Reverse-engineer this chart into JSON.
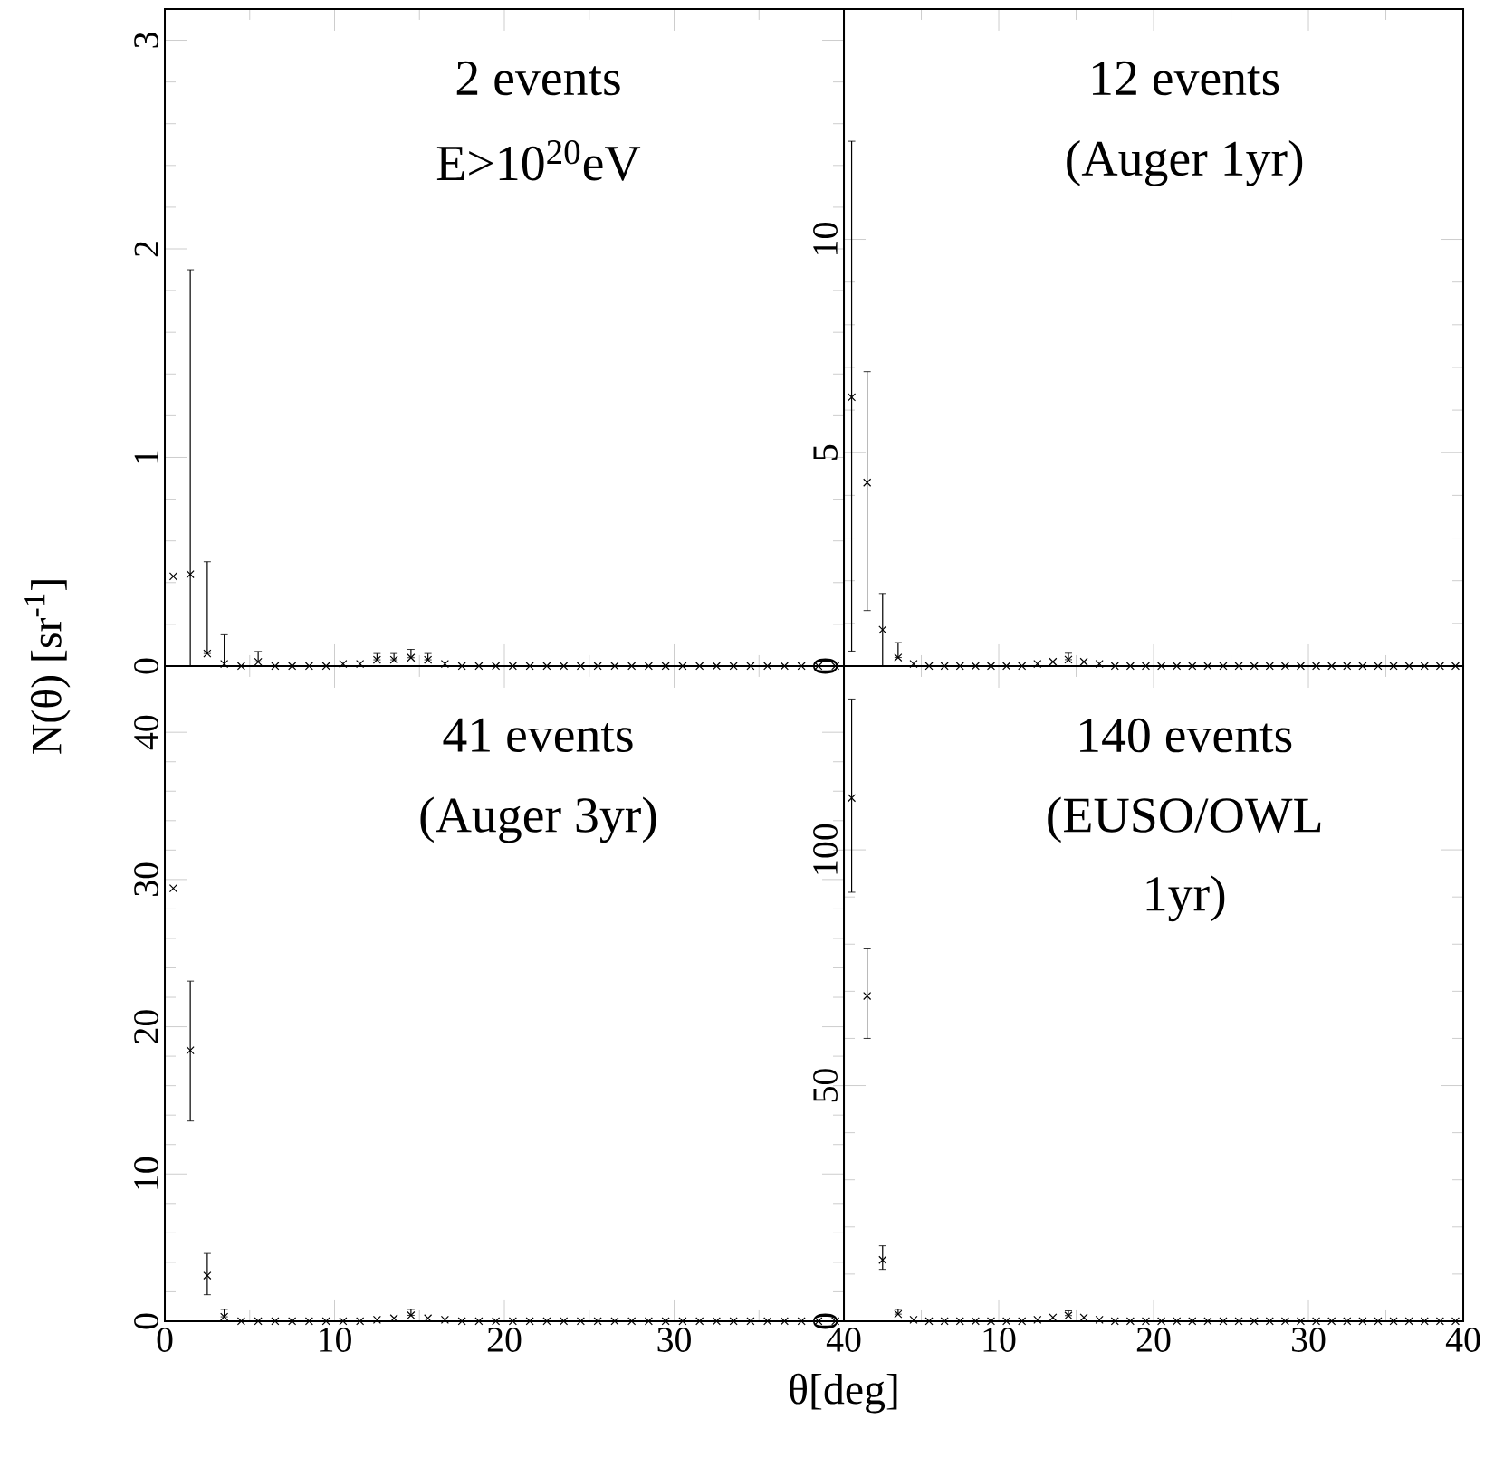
{
  "chart_data": [
    {
      "type": "scatter",
      "marker": "cross",
      "tick_labels": "y",
      "ylabel": "N(θ)  [sr$^{-1}$]",
      "annotations": [
        "2 events",
        "E>10$^{20}$eV"
      ],
      "xlim": [
        0,
        40
      ],
      "xticks": [
        {
          "value": 0,
          "label": null
        },
        {
          "value": 10,
          "label": null
        },
        {
          "value": 20,
          "label": null
        },
        {
          "value": 30,
          "label": null
        },
        {
          "value": 40,
          "label": null
        }
      ],
      "ylim": [
        0,
        3.15
      ],
      "yticks": [
        0,
        1,
        2,
        3
      ],
      "x": [
        0.5,
        1.5,
        2.5,
        3.5,
        4.5,
        5.5,
        6.5,
        7.5,
        8.5,
        9.5,
        10.5,
        11.5,
        12.5,
        13.5,
        14.5,
        15.5,
        16.5,
        17.5,
        18.5,
        19.5,
        20.5,
        21.5,
        22.5,
        23.5,
        24.5,
        25.5,
        26.5,
        27.5,
        28.5,
        29.5,
        30.5,
        31.5,
        32.5,
        33.5,
        34.5,
        35.5,
        36.5,
        37.5,
        38.5,
        39.5
      ],
      "values": [
        0.43,
        0.44,
        0.06,
        0.01,
        0.0,
        0.02,
        0.0,
        0.0,
        0.0,
        0.0,
        0.01,
        0.01,
        0.03,
        0.03,
        0.04,
        0.03,
        0.01,
        0.0,
        0.0,
        0.0,
        0.0,
        0.0,
        0.0,
        0.0,
        0.0,
        0.0,
        0.0,
        0.0,
        0.0,
        0.0,
        0.0,
        0.0,
        0.0,
        0.0,
        0.0,
        0.0,
        0.0,
        0.0,
        0.0,
        0.0
      ],
      "errors": [
        null,
        [
          0,
          1.9
        ],
        [
          0.06,
          0.5
        ],
        [
          0,
          0.15
        ],
        null,
        [
          0.02,
          0.07
        ],
        null,
        null,
        null,
        null,
        null,
        null,
        [
          0.03,
          0.06
        ],
        [
          0.03,
          0.06
        ],
        [
          0.04,
          0.08
        ],
        [
          0.03,
          0.06
        ],
        null,
        null,
        null,
        null,
        null,
        null,
        null,
        null,
        null,
        null,
        null,
        null,
        null,
        null,
        null,
        null,
        null,
        null,
        null,
        null,
        null,
        null,
        null,
        null
      ]
    },
    {
      "type": "scatter",
      "marker": "cross",
      "tick_labels": "y",
      "annotations": [
        "12 events",
        "(Auger 1yr)"
      ],
      "xlim": [
        0,
        40
      ],
      "xticks": [
        {
          "value": 0,
          "label": null
        },
        {
          "value": 10,
          "label": null
        },
        {
          "value": 20,
          "label": null
        },
        {
          "value": 30,
          "label": null
        },
        {
          "value": 40,
          "label": null
        }
      ],
      "ylim": [
        0,
        15.4
      ],
      "yticks": [
        0,
        5,
        10
      ],
      "x": [
        0.5,
        1.5,
        2.5,
        3.5,
        4.5,
        5.5,
        6.5,
        7.5,
        8.5,
        9.5,
        10.5,
        11.5,
        12.5,
        13.5,
        14.5,
        15.5,
        16.5,
        17.5,
        18.5,
        19.5,
        20.5,
        21.5,
        22.5,
        23.5,
        24.5,
        25.5,
        26.5,
        27.5,
        28.5,
        29.5,
        30.5,
        31.5,
        32.5,
        33.5,
        34.5,
        35.5,
        36.5,
        37.5,
        38.5,
        39.5
      ],
      "values": [
        6.3,
        4.3,
        0.85,
        0.2,
        0.05,
        0.0,
        0.0,
        0.0,
        0.0,
        0.0,
        0.0,
        0.0,
        0.05,
        0.1,
        0.15,
        0.1,
        0.05,
        0.0,
        0.0,
        0.0,
        0.0,
        0.0,
        0.0,
        0.0,
        0.0,
        0.0,
        0.0,
        0.0,
        0.0,
        0.0,
        0.0,
        0.0,
        0.0,
        0.0,
        0.0,
        0.0,
        0.0,
        0.0,
        0.0,
        0.0
      ],
      "errors": [
        [
          0.35,
          12.3
        ],
        [
          1.3,
          6.9
        ],
        [
          0,
          1.7
        ],
        [
          0.2,
          0.55
        ],
        null,
        null,
        null,
        null,
        null,
        null,
        null,
        null,
        null,
        null,
        [
          0.15,
          0.3
        ],
        null,
        null,
        null,
        null,
        null,
        null,
        null,
        null,
        null,
        null,
        null,
        null,
        null,
        null,
        null,
        null,
        null,
        null,
        null,
        null,
        null,
        null,
        null,
        null,
        null
      ]
    },
    {
      "type": "scatter",
      "marker": "cross",
      "xlabel": "θ[deg]",
      "annotations": [
        "41 events",
        "(Auger 3yr)"
      ],
      "xlim": [
        0,
        40
      ],
      "xticks": [
        0,
        10,
        20,
        30,
        40
      ],
      "ylim": [
        0,
        44.5
      ],
      "yticks": [
        0,
        10,
        20,
        30,
        40
      ],
      "x": [
        0.5,
        1.5,
        2.5,
        3.5,
        4.5,
        5.5,
        6.5,
        7.5,
        8.5,
        9.5,
        10.5,
        11.5,
        12.5,
        13.5,
        14.5,
        15.5,
        16.5,
        17.5,
        18.5,
        19.5,
        20.5,
        21.5,
        22.5,
        23.5,
        24.5,
        25.5,
        26.5,
        27.5,
        28.5,
        29.5,
        30.5,
        31.5,
        32.5,
        33.5,
        34.5,
        35.5,
        36.5,
        37.5,
        38.5,
        39.5
      ],
      "values": [
        29.4,
        18.4,
        3.1,
        0.3,
        0.0,
        0.0,
        0.0,
        0.0,
        0.0,
        0.0,
        0.0,
        0.0,
        0.1,
        0.2,
        0.4,
        0.2,
        0.1,
        0.0,
        0.0,
        0.0,
        0.0,
        0.0,
        0.0,
        0.0,
        0.0,
        0.0,
        0.0,
        0.0,
        0.0,
        0.0,
        0.0,
        0.0,
        0.0,
        0.0,
        0.0,
        0.0,
        0.0,
        0.0,
        0.0,
        0.0
      ],
      "errors": [
        null,
        [
          13.6,
          23.1
        ],
        [
          1.8,
          4.6
        ],
        [
          0.3,
          0.8
        ],
        null,
        null,
        null,
        null,
        null,
        null,
        null,
        null,
        null,
        null,
        [
          0.4,
          0.8
        ],
        null,
        null,
        null,
        null,
        null,
        null,
        null,
        null,
        null,
        null,
        null,
        null,
        null,
        null,
        null,
        null,
        null,
        null,
        null,
        null,
        null,
        null,
        null,
        null,
        null
      ]
    },
    {
      "type": "scatter",
      "marker": "cross",
      "annotations": [
        "140 events",
        "(EUSO/OWL",
        "1yr)"
      ],
      "xlim": [
        0,
        40
      ],
      "xticks": [
        {
          "value": 0,
          "label": null
        },
        10,
        20,
        30,
        40
      ],
      "ylim": [
        0,
        139
      ],
      "yticks": [
        0,
        50,
        100
      ],
      "x": [
        0.5,
        1.5,
        2.5,
        3.5,
        4.5,
        5.5,
        6.5,
        7.5,
        8.5,
        9.5,
        10.5,
        11.5,
        12.5,
        13.5,
        14.5,
        15.5,
        16.5,
        17.5,
        18.5,
        19.5,
        20.5,
        21.5,
        22.5,
        23.5,
        24.5,
        25.5,
        26.5,
        27.5,
        28.5,
        29.5,
        30.5,
        31.5,
        32.5,
        33.5,
        34.5,
        35.5,
        36.5,
        37.5,
        38.5,
        39.5
      ],
      "values": [
        111,
        69,
        13,
        1.5,
        0.3,
        0.0,
        0.0,
        0.0,
        0.0,
        0.0,
        0.0,
        0.0,
        0.3,
        0.8,
        1.2,
        0.8,
        0.3,
        0.0,
        0.0,
        0.0,
        0.0,
        0.0,
        0.0,
        0.0,
        0.0,
        0.0,
        0.0,
        0.0,
        0.0,
        0.0,
        0.0,
        0.0,
        0.0,
        0.0,
        0.0,
        0.0,
        0.0,
        0.0,
        0.0,
        0.0
      ],
      "errors": [
        [
          91,
          132
        ],
        [
          60,
          79
        ],
        [
          11,
          16
        ],
        [
          1.5,
          2.5
        ],
        null,
        null,
        null,
        null,
        null,
        null,
        null,
        null,
        null,
        null,
        [
          1.2,
          2.2
        ],
        null,
        null,
        null,
        null,
        null,
        null,
        null,
        null,
        null,
        null,
        null,
        null,
        null,
        null,
        null,
        null,
        null,
        null,
        null,
        null,
        null,
        null,
        null,
        null,
        null
      ]
    }
  ]
}
